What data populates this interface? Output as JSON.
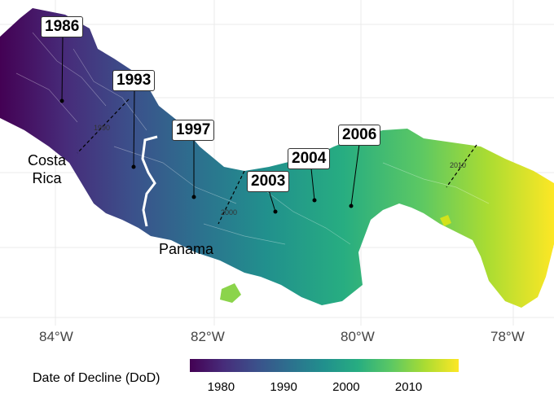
{
  "map": {
    "year_labels": [
      "1986",
      "1993",
      "1997",
      "2003",
      "2004",
      "2006"
    ],
    "countries": [
      "Costa\nRica",
      "Panama"
    ],
    "contour_labels": [
      "1990",
      "2000",
      "2010"
    ],
    "longitude_ticks": [
      "84°W",
      "82°W",
      "80°W",
      "78°W"
    ],
    "colors": {
      "low": "#440154",
      "mid": "#21908d",
      "high": "#fde725",
      "grid": "#ebebeb",
      "border": "#ffffff"
    }
  },
  "legend": {
    "title": "Date of Decline (DoD)",
    "ticks": [
      "1980",
      "1990",
      "2000",
      "2010"
    ],
    "range": [
      1975,
      2018
    ]
  }
}
